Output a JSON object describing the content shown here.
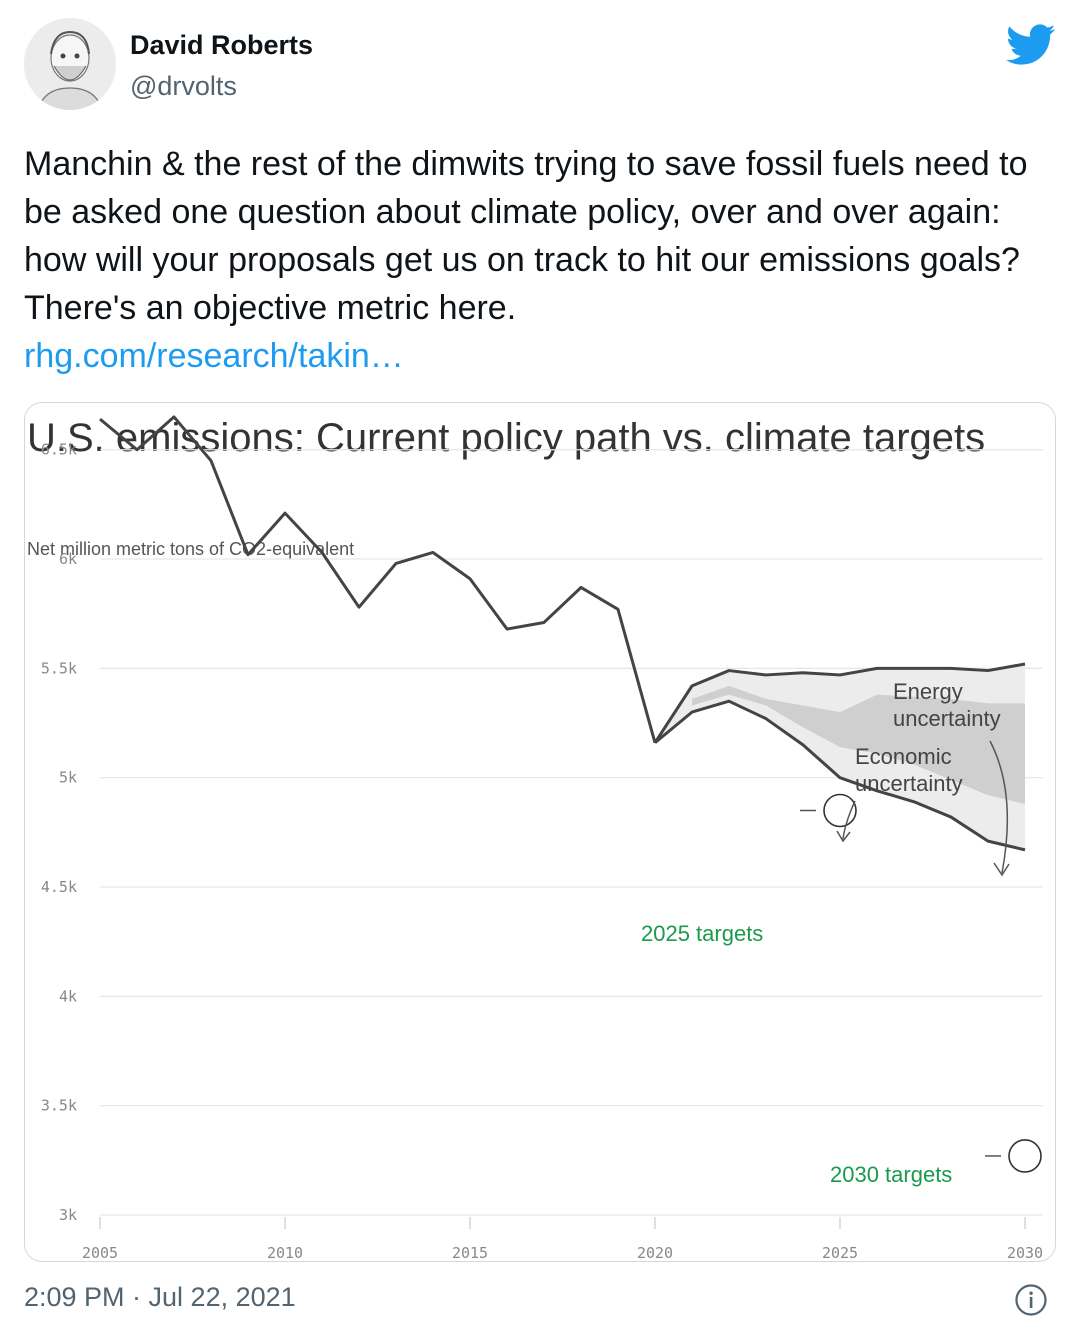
{
  "tweet": {
    "author_name": "David Roberts",
    "handle": "@drvolts",
    "text": "Manchin & the rest of the dimwits trying to save fossil fuels need to be asked one question about climate policy, over and over again: how will your proposals get us on track to hit our emissions goals? There's an objective metric here.",
    "link_text": "rhg.com/research/takin…",
    "timestamp": "2:09 PM · Jul 22, 2021",
    "icons": {
      "logo": "twitter-bird-icon",
      "info": "info-icon",
      "avatar": "avatar"
    },
    "colors": {
      "link": "#1d9bf0",
      "brand": "#1d9bf0",
      "target": "#1a9a4c"
    }
  },
  "chart_data": {
    "type": "line",
    "title": "U.S. emissions: Current policy path vs. climate targets",
    "subtitle": "Net million metric tons of CO2-equivalent",
    "xlim": [
      2005,
      2030
    ],
    "ylim": [
      3000,
      6700
    ],
    "x_ticks": [
      2005,
      2010,
      2015,
      2020,
      2025,
      2030
    ],
    "x_tick_labels": [
      "2005",
      "2010",
      "2015",
      "2020",
      "2025",
      "2030"
    ],
    "y_ticks": [
      3000,
      3500,
      4000,
      4500,
      5000,
      5500,
      6000,
      6500
    ],
    "y_tick_labels": [
      "3k",
      "3.5k",
      "4k",
      "4.5k",
      "5k",
      "5.5k",
      "6k",
      "6.5k"
    ],
    "grid": true,
    "historical": {
      "x": [
        2005,
        2006,
        2007,
        2008,
        2009,
        2010,
        2011,
        2012,
        2013,
        2014,
        2015,
        2016,
        2017,
        2018,
        2019,
        2020
      ],
      "y": [
        6640,
        6500,
        6650,
        6450,
        6020,
        6210,
        6030,
        5780,
        5980,
        6030,
        5910,
        5680,
        5710,
        5870,
        5770,
        5160
      ]
    },
    "projection_upper": {
      "x": [
        2020,
        2021,
        2022,
        2023,
        2024,
        2025,
        2026,
        2027,
        2028,
        2029,
        2030
      ],
      "y": [
        5160,
        5420,
        5490,
        5470,
        5480,
        5470,
        5500,
        5500,
        5500,
        5490,
        5520
      ]
    },
    "projection_lower": {
      "x": [
        2020,
        2021,
        2022,
        2023,
        2024,
        2025,
        2026,
        2027,
        2028,
        2029,
        2030
      ],
      "y": [
        5160,
        5300,
        5350,
        5270,
        5150,
        5000,
        4940,
        4890,
        4820,
        4710,
        4670
      ]
    },
    "economic_band": {
      "x": [
        2021,
        2022,
        2023,
        2024,
        2025,
        2026,
        2027,
        2028,
        2029,
        2030
      ],
      "upper": [
        5360,
        5420,
        5360,
        5330,
        5300,
        5380,
        5370,
        5360,
        5340,
        5340
      ],
      "lower": [
        5330,
        5380,
        5330,
        5230,
        5140,
        5110,
        5060,
        4990,
        4920,
        4880
      ]
    },
    "annotations": {
      "energy": [
        "Energy",
        "uncertainty"
      ],
      "economic": [
        "Economic",
        "uncertainty"
      ],
      "target_2025": "2025 targets",
      "target_2030": "2030 targets"
    },
    "targets": [
      {
        "x": 2025,
        "y": 4850,
        "label": "2025 targets"
      },
      {
        "x": 2030,
        "y": 3270,
        "label": "2030 targets"
      }
    ]
  }
}
